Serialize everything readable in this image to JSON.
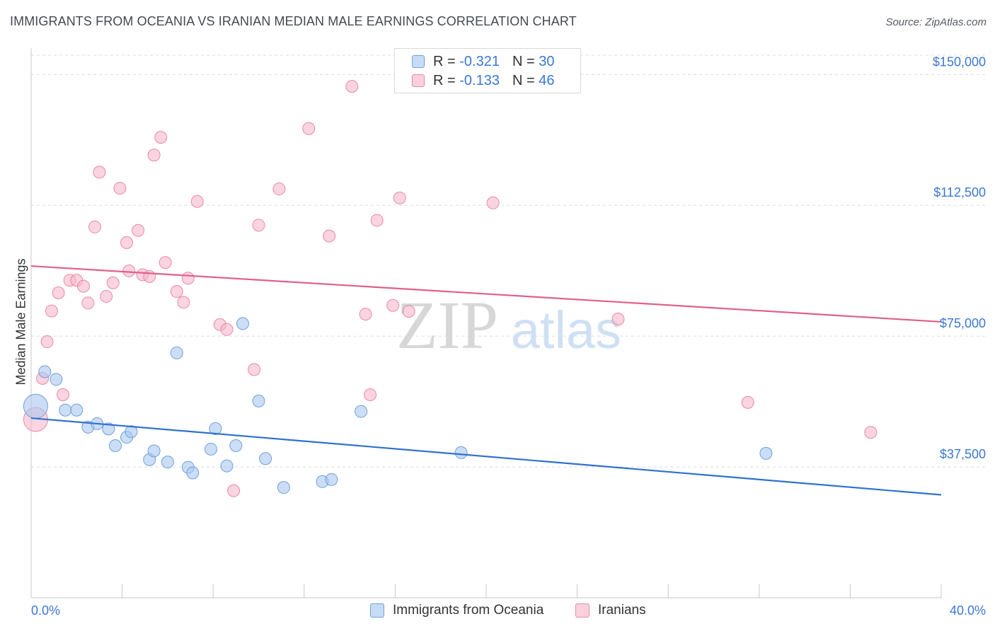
{
  "header": {
    "title": "IMMIGRANTS FROM OCEANIA VS IRANIAN MEDIAN MALE EARNINGS CORRELATION CHART",
    "source": "Source: ZipAtlas.com"
  },
  "watermark": {
    "part1": "ZIP",
    "part2": "atlas"
  },
  "legend_top": {
    "rows": [
      {
        "r_label": "R =",
        "r_value": "-0.321",
        "n_label": "N =",
        "n_value": "30"
      },
      {
        "r_label": "R =",
        "r_value": "-0.133",
        "n_label": "N =",
        "n_value": "46"
      }
    ]
  },
  "legend_bottom": {
    "items": [
      {
        "label": "Immigrants from Oceania"
      },
      {
        "label": "Iranians"
      }
    ]
  },
  "colors": {
    "blue_fill": "#a9c8f0",
    "blue_stroke": "#6f9fdc",
    "blue_line": "#2f72cf",
    "pink_fill": "#f7b8cb",
    "pink_stroke": "#e88aa6",
    "pink_line": "#e0608a",
    "tick_text": "#3a78d4",
    "grid": "#dcdcdc"
  },
  "chart_data": {
    "type": "scatter",
    "title": "IMMIGRANTS FROM OCEANIA VS IRANIAN MEDIAN MALE EARNINGS CORRELATION CHART",
    "xlabel": "",
    "ylabel": "Median Male Earnings",
    "xlim": [
      0,
      40
    ],
    "ylim": [
      0,
      160000
    ],
    "x_tick_labels": [
      "0.0%",
      "40.0%"
    ],
    "y_ticks": [
      37500,
      75000,
      112500,
      150000
    ],
    "y_tick_labels": [
      "$37,500",
      "$75,000",
      "$112,500",
      "$150,000"
    ],
    "grid": true,
    "legend": "top-center",
    "series": [
      {
        "name": "Immigrants from Oceania",
        "r": -0.321,
        "n": 30,
        "trend": {
          "x": [
            0,
            40
          ],
          "y": [
            51500,
            29500
          ]
        },
        "points": [
          {
            "x": 0.2,
            "y": 54900,
            "size": "large"
          },
          {
            "x": 0.6,
            "y": 64800
          },
          {
            "x": 1.1,
            "y": 62600
          },
          {
            "x": 1.5,
            "y": 53800
          },
          {
            "x": 2.0,
            "y": 53800
          },
          {
            "x": 2.5,
            "y": 48900
          },
          {
            "x": 2.9,
            "y": 49900
          },
          {
            "x": 3.4,
            "y": 48400
          },
          {
            "x": 3.7,
            "y": 43600
          },
          {
            "x": 4.2,
            "y": 46000
          },
          {
            "x": 4.4,
            "y": 47600
          },
          {
            "x": 5.2,
            "y": 39600
          },
          {
            "x": 5.4,
            "y": 42100
          },
          {
            "x": 6.0,
            "y": 38900
          },
          {
            "x": 6.4,
            "y": 70200
          },
          {
            "x": 6.9,
            "y": 37400
          },
          {
            "x": 7.1,
            "y": 35800
          },
          {
            "x": 7.9,
            "y": 42600
          },
          {
            "x": 8.1,
            "y": 48500
          },
          {
            "x": 8.6,
            "y": 37800
          },
          {
            "x": 9.0,
            "y": 43600
          },
          {
            "x": 9.3,
            "y": 78600
          },
          {
            "x": 10.0,
            "y": 56400
          },
          {
            "x": 10.3,
            "y": 39900
          },
          {
            "x": 11.1,
            "y": 31600
          },
          {
            "x": 12.8,
            "y": 33300
          },
          {
            "x": 13.2,
            "y": 33900
          },
          {
            "x": 14.5,
            "y": 53400
          },
          {
            "x": 18.9,
            "y": 41600
          },
          {
            "x": 32.3,
            "y": 41400
          }
        ]
      },
      {
        "name": "Iranians",
        "r": -0.133,
        "n": 46,
        "trend": {
          "x": [
            0,
            40
          ],
          "y": [
            95100,
            79100
          ]
        },
        "points": [
          {
            "x": 0.2,
            "y": 51100,
            "size": "large"
          },
          {
            "x": 0.5,
            "y": 62900
          },
          {
            "x": 0.7,
            "y": 73400
          },
          {
            "x": 0.9,
            "y": 82200
          },
          {
            "x": 1.2,
            "y": 87400
          },
          {
            "x": 1.4,
            "y": 58200
          },
          {
            "x": 1.7,
            "y": 91000
          },
          {
            "x": 2.0,
            "y": 91000
          },
          {
            "x": 2.3,
            "y": 89300
          },
          {
            "x": 2.5,
            "y": 84500
          },
          {
            "x": 2.8,
            "y": 106300
          },
          {
            "x": 3.0,
            "y": 122000
          },
          {
            "x": 3.3,
            "y": 86400
          },
          {
            "x": 3.6,
            "y": 90300
          },
          {
            "x": 3.9,
            "y": 117400
          },
          {
            "x": 4.2,
            "y": 101800
          },
          {
            "x": 4.3,
            "y": 93700
          },
          {
            "x": 4.7,
            "y": 105300
          },
          {
            "x": 4.9,
            "y": 92600
          },
          {
            "x": 5.2,
            "y": 92100
          },
          {
            "x": 5.4,
            "y": 126900
          },
          {
            "x": 5.7,
            "y": 132000
          },
          {
            "x": 5.9,
            "y": 96100
          },
          {
            "x": 6.4,
            "y": 87800
          },
          {
            "x": 6.7,
            "y": 84700
          },
          {
            "x": 6.9,
            "y": 91600
          },
          {
            "x": 7.3,
            "y": 113600
          },
          {
            "x": 8.3,
            "y": 78300
          },
          {
            "x": 8.6,
            "y": 76900
          },
          {
            "x": 8.9,
            "y": 30700
          },
          {
            "x": 9.8,
            "y": 65400
          },
          {
            "x": 10.0,
            "y": 106800
          },
          {
            "x": 10.9,
            "y": 117200
          },
          {
            "x": 12.2,
            "y": 134500
          },
          {
            "x": 13.1,
            "y": 103700
          },
          {
            "x": 14.1,
            "y": 146600
          },
          {
            "x": 14.7,
            "y": 81300
          },
          {
            "x": 14.9,
            "y": 58200
          },
          {
            "x": 15.2,
            "y": 108200
          },
          {
            "x": 15.9,
            "y": 83800
          },
          {
            "x": 16.2,
            "y": 114600
          },
          {
            "x": 16.6,
            "y": 82100
          },
          {
            "x": 20.3,
            "y": 113200
          },
          {
            "x": 25.8,
            "y": 79900
          },
          {
            "x": 31.5,
            "y": 56000
          },
          {
            "x": 36.9,
            "y": 47400
          }
        ]
      }
    ]
  }
}
